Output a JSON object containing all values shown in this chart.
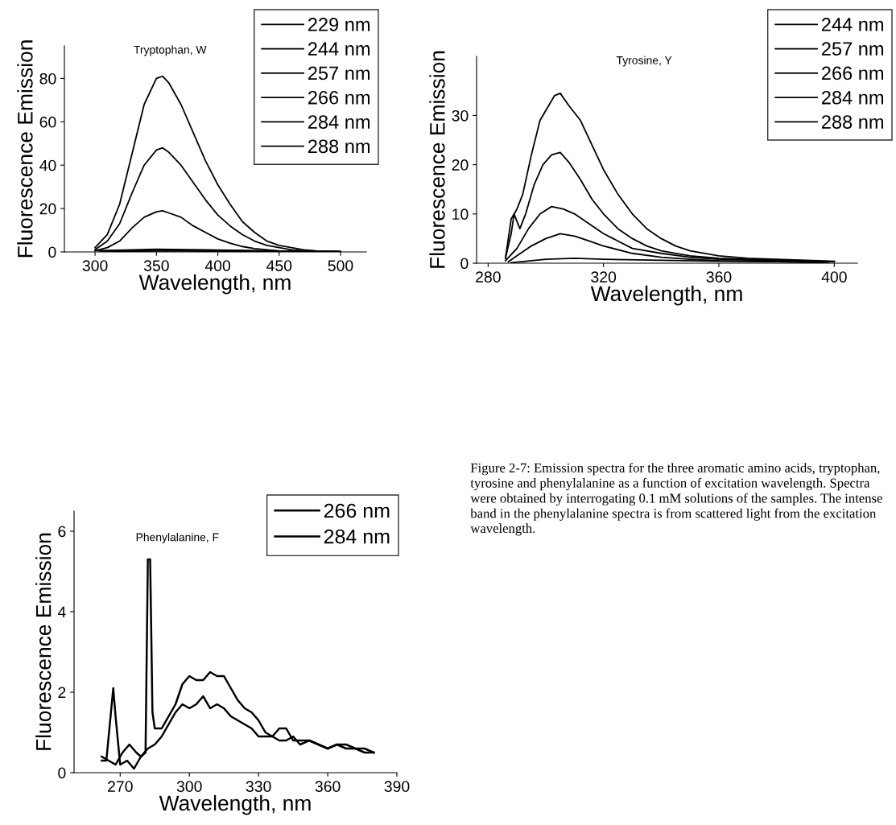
{
  "chart_data": [
    {
      "type": "line",
      "title": "Tryptophan, W",
      "xlabel": "Wavelength, nm",
      "ylabel": "Fluorescence Emission",
      "xlim": [
        275,
        521
      ],
      "xticks": [
        300,
        350,
        400,
        450,
        500
      ],
      "ylim": [
        0,
        95
      ],
      "yticks": [
        0,
        20,
        40,
        60,
        80
      ],
      "legend": "top right",
      "grid": false,
      "series": [
        {
          "name": "229 nm",
          "color": "#000000",
          "x": [
            300,
            310,
            320,
            330,
            340,
            350,
            355,
            360,
            370,
            380,
            390,
            400,
            410,
            420,
            430,
            440,
            450,
            460,
            470,
            480,
            490,
            500
          ],
          "values": [
            2,
            8,
            22,
            45,
            68,
            80,
            81,
            78,
            68,
            55,
            42,
            31,
            22,
            14,
            9,
            5,
            3,
            2,
            1,
            0.5,
            0.3,
            0.2
          ]
        },
        {
          "name": "244 nm",
          "color": "#000000",
          "x": [
            300,
            310,
            320,
            330,
            340,
            350,
            355,
            360,
            370,
            380,
            390,
            400,
            410,
            420,
            430,
            440,
            450,
            460,
            470,
            480,
            490,
            500
          ],
          "values": [
            1,
            5,
            13,
            27,
            40,
            47,
            48,
            46,
            40,
            32,
            24,
            17,
            12,
            8,
            5,
            3,
            2,
            1,
            0.5,
            0.3,
            0.2,
            0.1
          ]
        },
        {
          "name": "257 nm",
          "color": "#000000",
          "x": [
            300,
            310,
            320,
            330,
            340,
            350,
            355,
            360,
            370,
            380,
            390,
            400,
            410,
            420,
            430,
            440,
            450,
            460,
            480,
            500
          ],
          "values": [
            0.5,
            2,
            5,
            11,
            16,
            18.5,
            19,
            18,
            16,
            12,
            9,
            6,
            4,
            2.5,
            1.5,
            1,
            0.5,
            0.3,
            0.2,
            0.1
          ]
        },
        {
          "name": "266 nm",
          "color": "#000000",
          "x": [
            302,
            325,
            350,
            375,
            400,
            425,
            450,
            475,
            498
          ],
          "values": [
            0.6,
            0.9,
            1.2,
            1.1,
            0.9,
            0.7,
            0.4,
            0.2,
            0.1
          ]
        },
        {
          "name": "284 nm",
          "color": "#000000",
          "x": [
            304,
            325,
            350,
            375,
            400,
            425,
            450,
            475,
            496
          ],
          "values": [
            0.4,
            0.6,
            0.8,
            0.8,
            0.6,
            0.4,
            0.2,
            0.1,
            0.1
          ]
        },
        {
          "name": "288 nm",
          "color": "#000000",
          "x": [
            306,
            325,
            350,
            375,
            400,
            425,
            450,
            475,
            494
          ],
          "values": [
            0.2,
            0.3,
            0.4,
            0.4,
            0.3,
            0.2,
            0.1,
            0.1,
            0
          ]
        }
      ]
    },
    {
      "type": "line",
      "title": "Tyrosine, Y",
      "xlabel": "Wavelength, nm",
      "ylabel": "Fluorescence Emission",
      "xlim": [
        276,
        408
      ],
      "xticks": [
        280,
        320,
        360,
        400
      ],
      "ylim": [
        0,
        42
      ],
      "yticks": [
        0,
        10,
        20,
        30
      ],
      "legend": "top right",
      "grid": false,
      "series": [
        {
          "name": "244 nm",
          "color": "#000000",
          "x": [
            286,
            288,
            290,
            292,
            295,
            298,
            300,
            303,
            305,
            308,
            312,
            316,
            320,
            325,
            330,
            335,
            340,
            345,
            350,
            360,
            370,
            380,
            390,
            400
          ],
          "values": [
            1,
            9,
            11,
            14,
            22,
            29,
            31,
            34,
            34.5,
            32,
            29,
            24,
            19,
            14,
            10,
            7,
            5,
            3.5,
            2.5,
            1.5,
            1,
            0.8,
            0.6,
            0.4
          ]
        },
        {
          "name": "257 nm",
          "color": "#000000",
          "x": [
            286,
            288,
            289,
            291,
            293,
            296,
            299,
            302,
            305,
            308,
            312,
            316,
            320,
            325,
            330,
            335,
            340,
            350,
            360,
            370,
            380,
            390,
            400
          ],
          "values": [
            1,
            6,
            10,
            7,
            10,
            16,
            20,
            22,
            22.5,
            20.5,
            17,
            13,
            10,
            7,
            5,
            3.5,
            2.5,
            1.5,
            1,
            0.8,
            0.6,
            0.5,
            0.3
          ]
        },
        {
          "name": "266 nm",
          "color": "#000000",
          "x": [
            286,
            290,
            294,
            298,
            302,
            306,
            310,
            315,
            320,
            325,
            330,
            340,
            350,
            360,
            380,
            400
          ],
          "values": [
            0.5,
            3,
            7,
            10,
            11.5,
            11,
            10,
            8,
            6,
            4.5,
            3,
            2,
            1.2,
            0.8,
            0.5,
            0.3
          ]
        },
        {
          "name": "284 nm",
          "color": "#000000",
          "x": [
            287,
            290,
            295,
            300,
            305,
            310,
            315,
            320,
            330,
            340,
            350,
            360,
            380,
            398
          ],
          "values": [
            0.3,
            1.5,
            3.5,
            5,
            6,
            5.5,
            4.5,
            3.5,
            2,
            1.2,
            0.8,
            0.5,
            0.3,
            0.2
          ]
        },
        {
          "name": "288 nm",
          "color": "#000000",
          "x": [
            288,
            300,
            310,
            320,
            340,
            360,
            380,
            396
          ],
          "values": [
            0.1,
            0.8,
            1,
            0.8,
            0.6,
            0.4,
            0.3,
            0.1
          ]
        }
      ]
    },
    {
      "type": "line",
      "title": "Phenylalanine, F",
      "xlabel": "Wavelength, nm",
      "ylabel": "Fluorescence Emission",
      "xlim": [
        250,
        390
      ],
      "xticks": [
        270,
        300,
        330,
        360,
        390
      ],
      "ylim": [
        0,
        6.5
      ],
      "yticks": [
        0,
        2,
        4,
        6
      ],
      "legend": "top right",
      "grid": false,
      "annotations": [
        "Figure 2-7: Emission spectra for the three aromatic amino acids, tryptophan, tyrosine and phenylalanine as a function of excitation wavelength. Spectra were obtained by interrogating 0.1 mM solutions of the samples. The intense band in the phenylalanine spectra is from scattered light from the excitation wavelength."
      ],
      "series": [
        {
          "name": "266 nm",
          "color": "#000000",
          "x": [
            262,
            264,
            266,
            267,
            268,
            270,
            273,
            276,
            279,
            282,
            285,
            288,
            291,
            294,
            297,
            300,
            303,
            306,
            309,
            312,
            315,
            318,
            321,
            324,
            327,
            330,
            333,
            336,
            339,
            342,
            345,
            348,
            352,
            356,
            360,
            364,
            368,
            372,
            376,
            380
          ],
          "values": [
            0.3,
            0.3,
            1.5,
            2.1,
            1.4,
            0.2,
            0.3,
            0.1,
            0.4,
            0.6,
            0.7,
            0.9,
            1.2,
            1.5,
            1.7,
            1.6,
            1.7,
            1.9,
            1.6,
            1.7,
            1.6,
            1.4,
            1.3,
            1.2,
            1.1,
            0.9,
            0.9,
            0.9,
            0.8,
            0.8,
            0.9,
            0.7,
            0.8,
            0.7,
            0.6,
            0.7,
            0.6,
            0.6,
            0.5,
            0.5
          ]
        },
        {
          "name": "284 nm",
          "color": "#000000",
          "x": [
            262,
            265,
            268,
            271,
            274,
            277,
            279,
            281,
            282,
            283,
            284,
            285,
            288,
            291,
            294,
            297,
            300,
            303,
            306,
            309,
            312,
            315,
            318,
            321,
            324,
            327,
            330,
            333,
            336,
            339,
            342,
            345,
            348,
            352,
            356,
            360,
            364,
            368,
            372,
            376,
            380
          ],
          "values": [
            0.4,
            0.3,
            0.2,
            0.5,
            0.7,
            0.5,
            0.4,
            0.5,
            5.3,
            5.3,
            1.5,
            1.1,
            1.1,
            1.4,
            1.7,
            2.2,
            2.4,
            2.3,
            2.3,
            2.5,
            2.4,
            2.4,
            2.1,
            1.8,
            1.6,
            1.5,
            1.3,
            1.0,
            0.9,
            1.1,
            1.1,
            0.8,
            0.8,
            0.8,
            0.7,
            0.6,
            0.7,
            0.7,
            0.6,
            0.6,
            0.5
          ]
        }
      ]
    }
  ]
}
